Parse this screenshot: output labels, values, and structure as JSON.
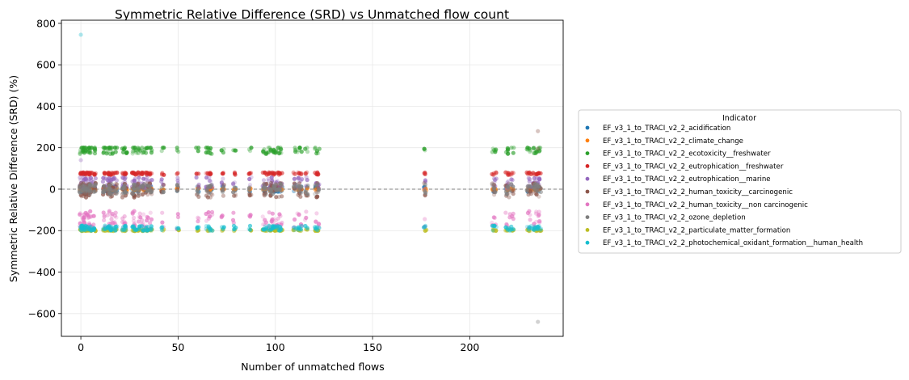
{
  "chart_data": {
    "type": "scatter",
    "title": "Symmetric Relative Difference (SRD) vs Unmatched flow count",
    "xlabel": "Number of unmatched flows",
    "ylabel": "Symmetric Relative Difference (SRD) (%)",
    "xlim": [
      -10,
      248
    ],
    "ylim": [
      -710,
      815
    ],
    "x_ticks": [
      0,
      50,
      100,
      150,
      200
    ],
    "y_ticks": [
      -600,
      -400,
      -200,
      0,
      200,
      400,
      600,
      800
    ],
    "y_tick_labels": [
      "−600",
      "−400",
      "−200",
      "0",
      "200",
      "400",
      "600",
      "800"
    ],
    "grid": true,
    "reference_line": {
      "y": 0,
      "style": "dashed",
      "color": "#808080"
    },
    "legend": {
      "title": "Indicator",
      "placement": "right-outside"
    },
    "x_clusters": [
      0,
      1,
      2,
      3,
      4,
      5,
      7,
      12,
      14,
      15,
      16,
      18,
      22,
      23,
      27,
      28,
      30,
      32,
      34,
      36,
      42,
      50,
      60,
      65,
      66,
      67,
      73,
      79,
      87,
      94,
      95,
      97,
      98,
      99,
      100,
      101,
      102,
      103,
      110,
      112,
      113,
      116,
      121,
      122,
      177,
      212,
      213,
      219,
      220,
      222,
      230,
      231,
      233,
      234,
      235,
      236
    ],
    "series": [
      {
        "name": "EF_v3_1_to_TRACI_v2_2_acidification",
        "color": "#1f77b4",
        "level": 0,
        "spread": 14
      },
      {
        "name": "EF_v3_1_to_TRACI_v2_2_climate_change",
        "color": "#ff7f0e",
        "level": 0,
        "spread": 6
      },
      {
        "name": "EF_v3_1_to_TRACI_v2_2_ecotoxicity__freshwater",
        "color": "#2ca02c",
        "level": 190,
        "spread": 20
      },
      {
        "name": "EF_v3_1_to_TRACI_v2_2_eutrophication__freshwater",
        "color": "#d62728",
        "level": 75,
        "spread": 6
      },
      {
        "name": "EF_v3_1_to_TRACI_v2_2_eutrophication__marine",
        "color": "#9467bd",
        "level": 30,
        "spread": 28
      },
      {
        "name": "EF_v3_1_to_TRACI_v2_2_human_toxicity__carcinogenic",
        "color": "#8c564b",
        "level": -5,
        "spread": 35
      },
      {
        "name": "EF_v3_1_to_TRACI_v2_2_human_toxicity__non carcinogenic",
        "color": "#e377c2",
        "level": -150,
        "spread": 45
      },
      {
        "name": "EF_v3_1_to_TRACI_v2_2_ozone_depletion",
        "color": "#7f7f7f",
        "level": 0,
        "spread": 25
      },
      {
        "name": "EF_v3_1_to_TRACI_v2_2_particulate_matter_formation",
        "color": "#bcbd22",
        "level": -198,
        "spread": 4
      },
      {
        "name": "EF_v3_1_to_TRACI_v2_2_photochemical_oxidant_formation__human_health",
        "color": "#17becf",
        "level": -188,
        "spread": 12
      }
    ],
    "outliers": [
      {
        "x": 0,
        "y": 745,
        "series": "EF_v3_1_to_TRACI_v2_2_photochemical_oxidant_formation__human_health"
      },
      {
        "x": 235,
        "y": 280,
        "series": "EF_v3_1_to_TRACI_v2_2_human_toxicity__carcinogenic"
      },
      {
        "x": 235,
        "y": -640,
        "series": "EF_v3_1_to_TRACI_v2_2_ozone_depletion"
      },
      {
        "x": 0,
        "y": 140,
        "series": "EF_v3_1_to_TRACI_v2_2_eutrophication__marine"
      },
      {
        "x": 235,
        "y": 195,
        "series": "EF_v3_1_to_TRACI_v2_2_human_toxicity__carcinogenic"
      }
    ]
  }
}
